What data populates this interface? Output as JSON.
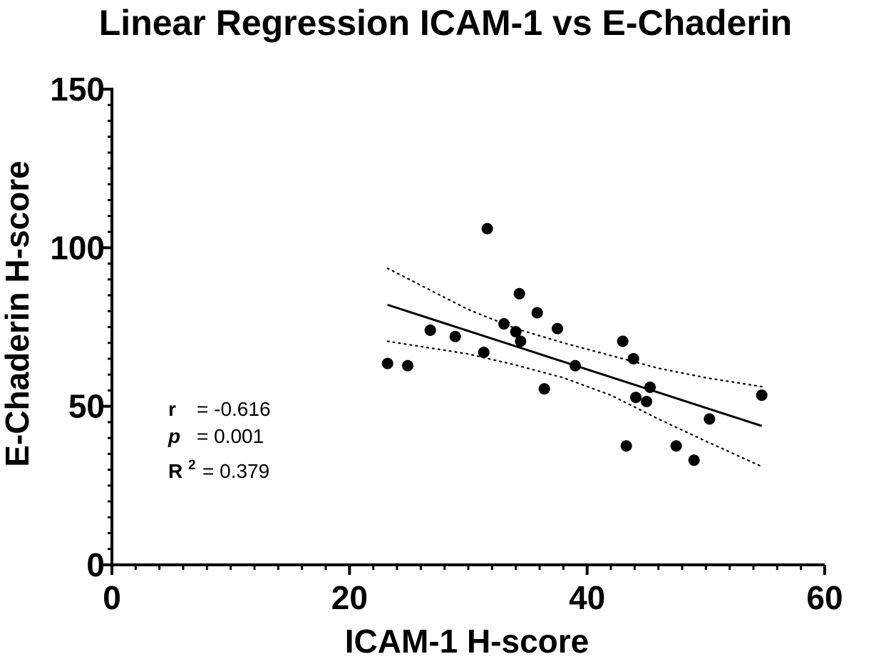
{
  "chart_data": {
    "type": "scatter",
    "title": "Linear Regression ICAM-1 vs E-Chaderin",
    "xlabel": "ICAM-1 H-score",
    "ylabel": "E-Chaderin H-score",
    "xlim": [
      0,
      60
    ],
    "ylim": [
      0,
      150
    ],
    "x_ticks": [
      0,
      20,
      40,
      60
    ],
    "y_ticks": [
      0,
      50,
      100,
      150
    ],
    "x_ticks_labels": [
      "0",
      "20",
      "40",
      "60"
    ],
    "y_ticks_labels": [
      "0",
      "50",
      "100",
      "150"
    ],
    "grid": false,
    "points": [
      {
        "x": 23.2,
        "y": 63.5
      },
      {
        "x": 24.9,
        "y": 62.8
      },
      {
        "x": 26.8,
        "y": 74.0
      },
      {
        "x": 28.9,
        "y": 72.0
      },
      {
        "x": 31.3,
        "y": 67.0
      },
      {
        "x": 31.6,
        "y": 106.0
      },
      {
        "x": 33.0,
        "y": 76.0
      },
      {
        "x": 34.0,
        "y": 73.5
      },
      {
        "x": 34.3,
        "y": 85.5
      },
      {
        "x": 34.4,
        "y": 70.5
      },
      {
        "x": 35.8,
        "y": 79.5
      },
      {
        "x": 36.4,
        "y": 55.5
      },
      {
        "x": 37.5,
        "y": 74.5
      },
      {
        "x": 39.0,
        "y": 62.8
      },
      {
        "x": 43.0,
        "y": 70.5
      },
      {
        "x": 43.3,
        "y": 37.5
      },
      {
        "x": 43.9,
        "y": 65.0
      },
      {
        "x": 44.1,
        "y": 52.8
      },
      {
        "x": 45.0,
        "y": 51.5
      },
      {
        "x": 45.3,
        "y": 56.0
      },
      {
        "x": 47.5,
        "y": 37.5
      },
      {
        "x": 49.0,
        "y": 33.0
      },
      {
        "x": 50.3,
        "y": 46.0
      },
      {
        "x": 54.7,
        "y": 53.5
      }
    ],
    "regression": {
      "x": [
        23.2,
        54.7
      ],
      "y": [
        82.0,
        43.8
      ]
    },
    "confidence_band": {
      "upper": {
        "x": [
          23.2,
          30,
          34,
          38,
          42,
          46,
          50,
          54.7
        ],
        "y": [
          93.5,
          80.5,
          74.5,
          70.0,
          66.0,
          62.0,
          59.0,
          56.2
        ]
      },
      "lower": {
        "x": [
          23.2,
          30,
          34,
          38,
          42,
          46,
          50,
          54.7
        ],
        "y": [
          70.5,
          66.5,
          63.0,
          59.0,
          53.5,
          46.0,
          39.0,
          31.0
        ]
      }
    },
    "stats": {
      "r_key": "r",
      "r_value": "= -0.616",
      "p_key": "p",
      "p_value": "= 0.001",
      "r2_key": "R",
      "r2_sup": "2",
      "r2_value": "= 0.379"
    }
  }
}
